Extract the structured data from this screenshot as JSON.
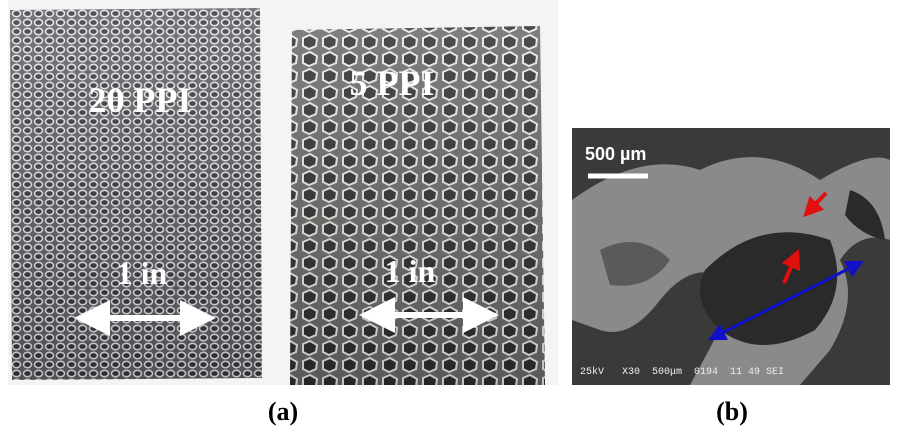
{
  "panel_a": {
    "label": "(a)",
    "samples": [
      {
        "name": "20 PPI",
        "scale": "1 in"
      },
      {
        "name": "5 PPI",
        "scale": "1 in"
      }
    ]
  },
  "panel_b": {
    "label": "(b)",
    "scale_bar": "500 µm",
    "footer": "25kV   X30  500μm  0194  11 49 SEI"
  }
}
